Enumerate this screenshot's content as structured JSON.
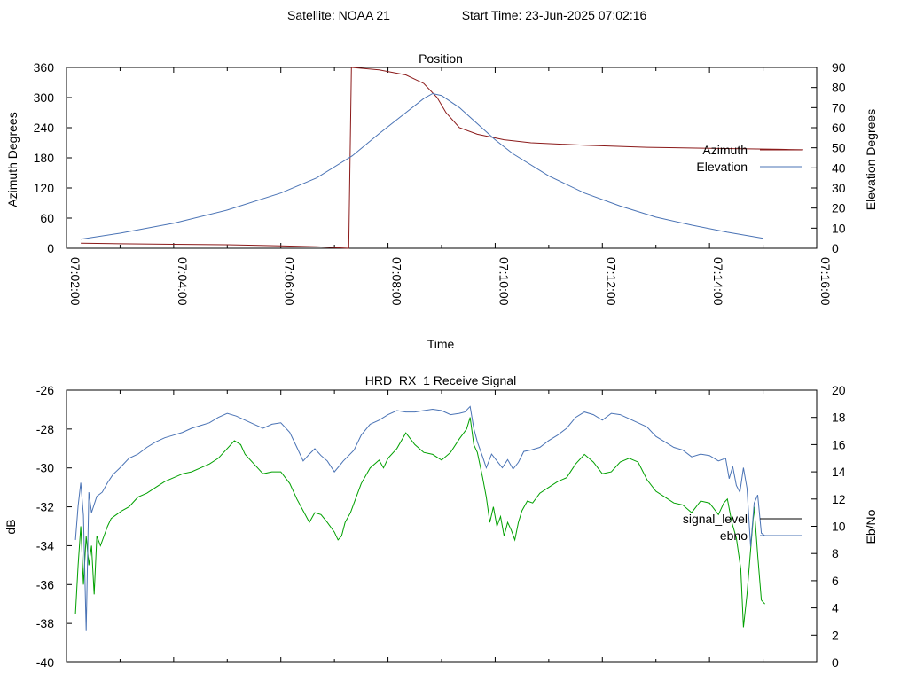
{
  "header": {
    "satellite": "Satellite: NOAA 21",
    "start_time": "Start Time: 23-Jun-2025 07:02:16"
  },
  "chart_data": [
    {
      "id": "position",
      "type": "line",
      "title": "Position",
      "xlabel": "Time",
      "ylabel": "Azimuth Degrees",
      "y2label": "Elevation Degrees",
      "xlim_seconds": [
        0,
        840
      ],
      "ylim": [
        0,
        360
      ],
      "y2lim": [
        0,
        90
      ],
      "x_ticks": [
        "07:02:00",
        "07:04:00",
        "07:06:00",
        "07:08:00",
        "07:10:00",
        "07:12:00",
        "07:14:00",
        "07:16:00"
      ],
      "y_ticks": [
        "0",
        "60",
        "120",
        "180",
        "240",
        "300",
        "360"
      ],
      "y2_ticks": [
        "0",
        "10",
        "20",
        "30",
        "40",
        "50",
        "60",
        "70",
        "80",
        "90"
      ],
      "legend_position": "right",
      "series": [
        {
          "name": "Azimuth",
          "axis": "y",
          "color": "#8b1a1a",
          "points": [
            [
              16,
              10
            ],
            [
              60,
              9
            ],
            [
              120,
              8
            ],
            [
              180,
              7
            ],
            [
              240,
              5
            ],
            [
              280,
              3
            ],
            [
              316,
              0
            ],
            [
              319,
              360
            ],
            [
              350,
              355
            ],
            [
              380,
              345
            ],
            [
              400,
              328
            ],
            [
              415,
              300
            ],
            [
              425,
              270
            ],
            [
              440,
              240
            ],
            [
              460,
              227
            ],
            [
              490,
              216
            ],
            [
              520,
              210
            ],
            [
              580,
              205
            ],
            [
              650,
              201
            ],
            [
              720,
              199
            ],
            [
              800,
              197
            ],
            [
              825,
              196
            ]
          ]
        },
        {
          "name": "Elevation",
          "axis": "y2",
          "color": "#4a73b5",
          "points": [
            [
              16,
              4.5
            ],
            [
              60,
              7.5
            ],
            [
              120,
              12.5
            ],
            [
              180,
              19
            ],
            [
              240,
              27.5
            ],
            [
              280,
              35
            ],
            [
              320,
              46
            ],
            [
              350,
              57
            ],
            [
              380,
              67.5
            ],
            [
              400,
              74.5
            ],
            [
              410,
              77
            ],
            [
              420,
              76
            ],
            [
              440,
              70
            ],
            [
              460,
              62
            ],
            [
              480,
              54
            ],
            [
              500,
              47
            ],
            [
              540,
              36
            ],
            [
              580,
              27.5
            ],
            [
              620,
              21
            ],
            [
              660,
              15.5
            ],
            [
              700,
              11.5
            ],
            [
              740,
              8
            ],
            [
              780,
              5
            ]
          ]
        }
      ]
    },
    {
      "id": "receive-signal",
      "type": "line",
      "title": "HRD_RX_1 Receive Signal",
      "ylabel": "dB",
      "y2label": "Eb/No",
      "xlim_seconds": [
        0,
        840
      ],
      "ylim": [
        -40,
        -26
      ],
      "y2lim": [
        0,
        20
      ],
      "y_ticks": [
        "-40",
        "-38",
        "-36",
        "-34",
        "-32",
        "-30",
        "-28",
        "-26"
      ],
      "y2_ticks": [
        "0",
        "2",
        "4",
        "6",
        "8",
        "10",
        "12",
        "14",
        "16",
        "18",
        "20"
      ],
      "legend_position": "right",
      "series": [
        {
          "name": "signal_level",
          "axis": "y",
          "color": "#00a000",
          "points": [
            [
              10,
              -37.5
            ],
            [
              13,
              -35
            ],
            [
              16,
              -33
            ],
            [
              19,
              -36
            ],
            [
              22,
              -33.5
            ],
            [
              25,
              -35
            ],
            [
              28,
              -34
            ],
            [
              31,
              -36.5
            ],
            [
              34,
              -33.5
            ],
            [
              38,
              -34
            ],
            [
              42,
              -33.5
            ],
            [
              46,
              -33
            ],
            [
              50,
              -32.6
            ],
            [
              56,
              -32.4
            ],
            [
              62,
              -32.2
            ],
            [
              70,
              -32
            ],
            [
              80,
              -31.5
            ],
            [
              90,
              -31.3
            ],
            [
              100,
              -31
            ],
            [
              110,
              -30.7
            ],
            [
              120,
              -30.5
            ],
            [
              130,
              -30.3
            ],
            [
              140,
              -30.2
            ],
            [
              150,
              -30
            ],
            [
              160,
              -29.8
            ],
            [
              170,
              -29.5
            ],
            [
              180,
              -29
            ],
            [
              188,
              -28.6
            ],
            [
              195,
              -28.8
            ],
            [
              200,
              -29.3
            ],
            [
              210,
              -29.8
            ],
            [
              220,
              -30.3
            ],
            [
              230,
              -30.2
            ],
            [
              240,
              -30.2
            ],
            [
              250,
              -30.8
            ],
            [
              258,
              -31.6
            ],
            [
              265,
              -32.2
            ],
            [
              272,
              -32.8
            ],
            [
              278,
              -32.3
            ],
            [
              285,
              -32.4
            ],
            [
              292,
              -32.8
            ],
            [
              300,
              -33.3
            ],
            [
              304,
              -33.7
            ],
            [
              308,
              -33.5
            ],
            [
              312,
              -32.8
            ],
            [
              318,
              -32.3
            ],
            [
              322,
              -31.8
            ],
            [
              330,
              -30.8
            ],
            [
              340,
              -30
            ],
            [
              350,
              -29.6
            ],
            [
              355,
              -30
            ],
            [
              360,
              -29.5
            ],
            [
              370,
              -29
            ],
            [
              380,
              -28.2
            ],
            [
              390,
              -28.8
            ],
            [
              400,
              -29.2
            ],
            [
              410,
              -29.3
            ],
            [
              420,
              -29.6
            ],
            [
              430,
              -29.2
            ],
            [
              440,
              -28.5
            ],
            [
              448,
              -28
            ],
            [
              452,
              -27.4
            ],
            [
              456,
              -28.8
            ],
            [
              460,
              -29.2
            ],
            [
              466,
              -30.5
            ],
            [
              470,
              -31.5
            ],
            [
              474,
              -32.8
            ],
            [
              478,
              -32
            ],
            [
              482,
              -33
            ],
            [
              486,
              -32.5
            ],
            [
              490,
              -33.5
            ],
            [
              494,
              -32.8
            ],
            [
              498,
              -33.2
            ],
            [
              502,
              -33.7
            ],
            [
              506,
              -32.8
            ],
            [
              510,
              -32.2
            ],
            [
              516,
              -31.7
            ],
            [
              522,
              -31.8
            ],
            [
              530,
              -31.3
            ],
            [
              540,
              -31
            ],
            [
              550,
              -30.7
            ],
            [
              560,
              -30.5
            ],
            [
              570,
              -29.8
            ],
            [
              580,
              -29.3
            ],
            [
              590,
              -29.7
            ],
            [
              600,
              -30.3
            ],
            [
              610,
              -30.2
            ],
            [
              620,
              -29.7
            ],
            [
              630,
              -29.5
            ],
            [
              640,
              -29.7
            ],
            [
              650,
              -30.6
            ],
            [
              660,
              -31.2
            ],
            [
              670,
              -31.5
            ],
            [
              680,
              -31.8
            ],
            [
              690,
              -31.9
            ],
            [
              700,
              -32.3
            ],
            [
              710,
              -31.7
            ],
            [
              720,
              -31.8
            ],
            [
              730,
              -32.4
            ],
            [
              736,
              -31.8
            ],
            [
              740,
              -31.6
            ],
            [
              745,
              -32.8
            ],
            [
              750,
              -33.6
            ],
            [
              755,
              -35.2
            ],
            [
              758,
              -38.2
            ],
            [
              762,
              -36.5
            ],
            [
              766,
              -34.2
            ],
            [
              770,
              -32
            ],
            [
              774,
              -34.5
            ],
            [
              778,
              -36.8
            ],
            [
              782,
              -37
            ]
          ]
        },
        {
          "name": "ebno",
          "axis": "y2",
          "color": "#4a73b5",
          "points": [
            [
              10,
              9
            ],
            [
              13,
              11.5
            ],
            [
              16,
              13.2
            ],
            [
              19,
              10.8
            ],
            [
              22,
              2.3
            ],
            [
              25,
              12.5
            ],
            [
              28,
              11
            ],
            [
              34,
              12.2
            ],
            [
              40,
              12.5
            ],
            [
              46,
              13.2
            ],
            [
              52,
              13.8
            ],
            [
              60,
              14.3
            ],
            [
              70,
              15
            ],
            [
              80,
              15.3
            ],
            [
              90,
              15.8
            ],
            [
              100,
              16.2
            ],
            [
              110,
              16.5
            ],
            [
              120,
              16.7
            ],
            [
              130,
              16.9
            ],
            [
              140,
              17.2
            ],
            [
              150,
              17.4
            ],
            [
              160,
              17.6
            ],
            [
              170,
              18
            ],
            [
              180,
              18.3
            ],
            [
              190,
              18.1
            ],
            [
              200,
              17.8
            ],
            [
              210,
              17.5
            ],
            [
              220,
              17.2
            ],
            [
              230,
              17.5
            ],
            [
              240,
              17.6
            ],
            [
              250,
              16.9
            ],
            [
              258,
              15.8
            ],
            [
              265,
              14.8
            ],
            [
              272,
              15.3
            ],
            [
              278,
              15.7
            ],
            [
              285,
              15.2
            ],
            [
              292,
              14.8
            ],
            [
              300,
              14
            ],
            [
              305,
              14.4
            ],
            [
              310,
              14.8
            ],
            [
              316,
              15.2
            ],
            [
              322,
              15.6
            ],
            [
              330,
              16.7
            ],
            [
              340,
              17.5
            ],
            [
              350,
              17.8
            ],
            [
              360,
              18.2
            ],
            [
              370,
              18.5
            ],
            [
              380,
              18.4
            ],
            [
              390,
              18.4
            ],
            [
              400,
              18.5
            ],
            [
              410,
              18.6
            ],
            [
              420,
              18.5
            ],
            [
              430,
              18.2
            ],
            [
              440,
              18.3
            ],
            [
              446,
              18.4
            ],
            [
              452,
              18.8
            ],
            [
              456,
              17.2
            ],
            [
              460,
              16.2
            ],
            [
              466,
              15.1
            ],
            [
              470,
              14.3
            ],
            [
              476,
              15.3
            ],
            [
              482,
              14.8
            ],
            [
              488,
              14.3
            ],
            [
              494,
              14.9
            ],
            [
              500,
              14.2
            ],
            [
              506,
              14.7
            ],
            [
              512,
              15.5
            ],
            [
              520,
              15.6
            ],
            [
              530,
              15.8
            ],
            [
              540,
              16.3
            ],
            [
              550,
              16.7
            ],
            [
              560,
              17.2
            ],
            [
              570,
              18
            ],
            [
              580,
              18.4
            ],
            [
              590,
              18.2
            ],
            [
              600,
              17.8
            ],
            [
              610,
              18.3
            ],
            [
              620,
              18.2
            ],
            [
              630,
              17.9
            ],
            [
              640,
              17.6
            ],
            [
              650,
              17.3
            ],
            [
              660,
              16.6
            ],
            [
              670,
              16.2
            ],
            [
              680,
              15.8
            ],
            [
              690,
              15.6
            ],
            [
              700,
              15.1
            ],
            [
              710,
              15.3
            ],
            [
              720,
              15.2
            ],
            [
              730,
              14.8
            ],
            [
              738,
              15
            ],
            [
              742,
              13.5
            ],
            [
              746,
              14.4
            ],
            [
              750,
              13
            ],
            [
              754,
              12.5
            ],
            [
              758,
              14.3
            ],
            [
              762,
              12.8
            ],
            [
              766,
              8.5
            ],
            [
              770,
              11.7
            ],
            [
              774,
              12.3
            ],
            [
              778,
              9.5
            ],
            [
              782,
              9.3
            ]
          ]
        }
      ]
    }
  ]
}
